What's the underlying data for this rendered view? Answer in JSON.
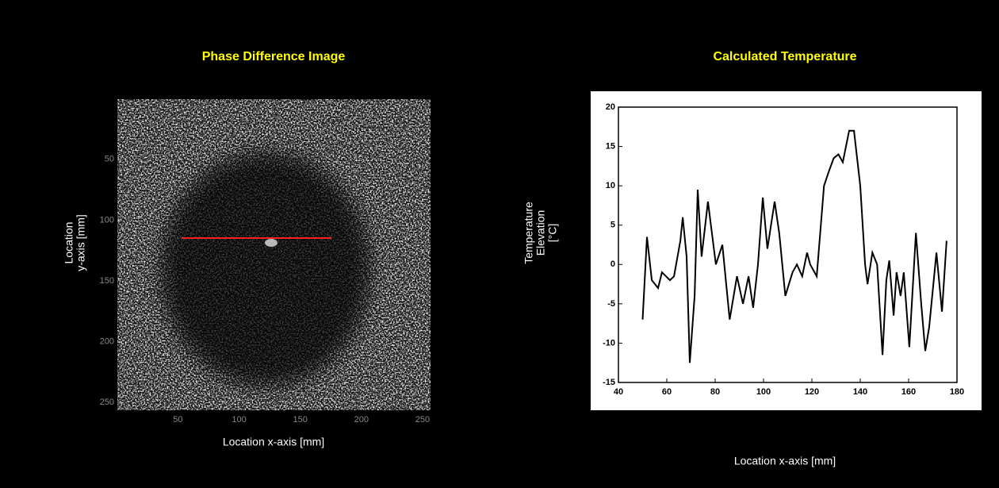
{
  "chart_data": [
    {
      "type": "image",
      "title": "Phase Difference Image",
      "xlabel": "Location x-axis [mm]",
      "ylabel": [
        "Location",
        "y-axis [mm]"
      ],
      "xlim": [
        0.5,
        256.5
      ],
      "ylim": [
        0.5,
        256.5
      ],
      "y_reversed": true,
      "xticks": [
        50,
        100,
        150,
        200,
        250
      ],
      "yticks": [
        50,
        100,
        150,
        200,
        250
      ]
    },
    {
      "type": "line",
      "title": "Calculated Temperature",
      "xlabel": "Location x-axis [mm]",
      "ylabel": [
        "Temperature",
        "Elevation",
        "[°C]"
      ],
      "x": [
        50,
        51.8,
        53.8,
        56.4,
        58,
        61.3,
        63,
        65.6,
        66.6,
        68.2,
        69.5,
        71.5,
        72.8,
        74.4,
        77,
        80.3,
        83,
        86,
        89,
        91.5,
        93.8,
        95.7,
        97.7,
        99.7,
        101.6,
        104.6,
        106.5,
        109,
        112,
        113.8,
        116,
        118,
        119.3,
        122,
        125,
        127.2,
        129,
        131,
        132.8,
        135.4,
        137.4,
        140,
        142,
        143,
        145,
        147,
        149.2,
        150.8,
        152,
        153.8,
        155,
        156.7,
        158,
        160.3,
        163,
        165.2,
        166.9,
        168.5,
        171.5,
        173.8,
        175.7
      ],
      "series": [
        {
          "color": "#000000",
          "values": [
            -7,
            3.5,
            -2,
            -3,
            -1,
            -2,
            -1.5,
            3,
            6,
            1,
            -12.5,
            -4,
            9.5,
            1,
            8,
            0,
            2.5,
            -7,
            -1.5,
            -5,
            -1.5,
            -5.5,
            0,
            8.5,
            2,
            8,
            4,
            -4,
            -1,
            0,
            -1.5,
            1.5,
            0,
            -1.5,
            10,
            12,
            13.5,
            14,
            13,
            17,
            17,
            10,
            0,
            -2.5,
            1.5,
            0,
            -11.5,
            -2,
            0.5,
            -6.5,
            -1,
            -4,
            -1,
            -10.5,
            4,
            -5,
            -11,
            -8,
            1.5,
            -6,
            3
          ]
        }
      ],
      "xlim": [
        40,
        180
      ],
      "ylim": [
        -15,
        20
      ],
      "xticks": [
        40,
        60,
        80,
        100,
        120,
        140,
        160,
        180
      ],
      "yticks": [
        -15,
        -10,
        -5,
        0,
        5,
        10,
        15,
        20
      ]
    }
  ]
}
